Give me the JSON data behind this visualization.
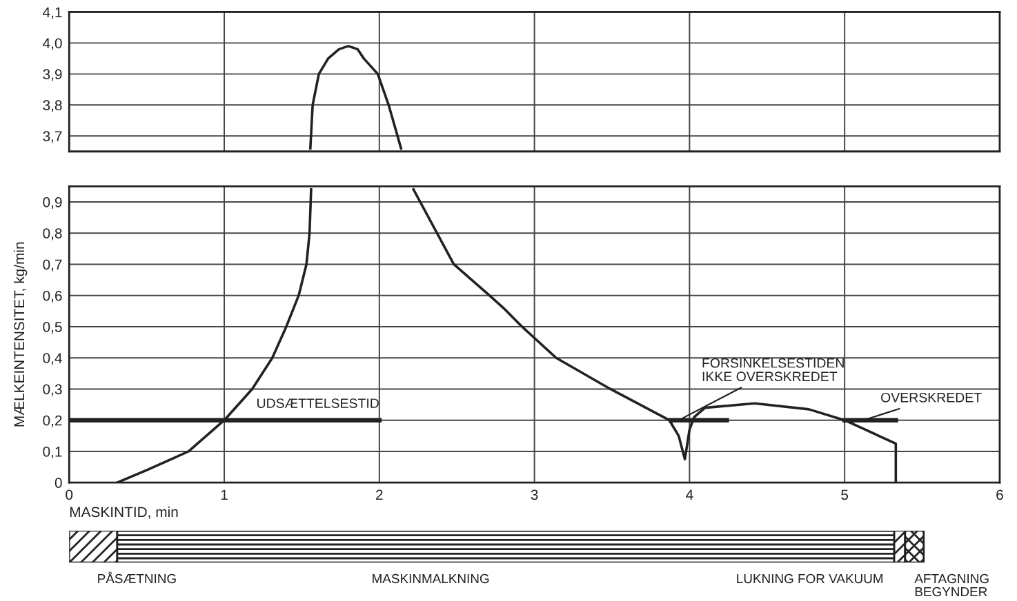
{
  "chart_data": [
    {
      "type": "line",
      "xlim": [
        0,
        6
      ],
      "xticks": [
        0,
        1,
        2,
        3,
        4,
        5,
        6
      ],
      "ylim": [
        3.65,
        4.1
      ],
      "yticks": [
        {
          "value": 3.7,
          "label": "3,7"
        },
        {
          "value": 3.8,
          "label": "3,8"
        },
        {
          "value": 3.9,
          "label": "3,9"
        },
        {
          "value": 4.0,
          "label": "4,0"
        },
        {
          "value": 4.1,
          "label": "4,1"
        }
      ],
      "grid": true,
      "tick_labels": "y",
      "line_style": "solid",
      "series": [
        {
          "color": "#222222",
          "x": [
            1.555,
            1.57,
            1.61,
            1.67,
            1.74,
            1.8,
            1.86,
            1.9,
            1.99,
            2.06,
            2.14
          ],
          "values": [
            3.66,
            3.8,
            3.9,
            3.95,
            3.98,
            3.99,
            3.98,
            3.95,
            3.9,
            3.8,
            3.66
          ]
        }
      ]
    },
    {
      "type": "line",
      "xlim": [
        0,
        6
      ],
      "xticks": [
        0,
        1,
        2,
        3,
        4,
        5,
        6
      ],
      "ylim": [
        0,
        0.95
      ],
      "yticks": [
        0,
        {
          "value": 0.1,
          "label": "0,1"
        },
        {
          "value": 0.2,
          "label": "0,2"
        },
        {
          "value": 0.3,
          "label": "0,3"
        },
        {
          "value": 0.4,
          "label": "0,4"
        },
        {
          "value": 0.5,
          "label": "0,5"
        },
        {
          "value": 0.6,
          "label": "0,6"
        },
        {
          "value": 0.7,
          "label": "0,7"
        },
        {
          "value": 0.8,
          "label": "0,8"
        },
        {
          "value": 0.9,
          "label": "0,9"
        }
      ],
      "xlabel": "MASKINTID, min",
      "ylabel": "MÆLKEINTENSITET, kg/min",
      "grid": true,
      "line_style": "solid",
      "series": [
        {
          "color": "#222222",
          "x": [
            0.31,
            0.5,
            0.77,
            1.0,
            1.18,
            1.31,
            1.4,
            1.48,
            1.53,
            1.55,
            1.56,
            1.9,
            2.22,
            2.48,
            2.71,
            2.8,
            2.92,
            3.14,
            3.49,
            3.87,
            3.93,
            3.97,
            4.0,
            4.03,
            4.1,
            4.42,
            4.77,
            5.0,
            5.33,
            5.33
          ],
          "values": [
            0,
            0.04,
            0.1,
            0.2,
            0.3,
            0.4,
            0.5,
            0.6,
            0.7,
            0.8,
            0.94,
            null,
            0.94,
            0.7,
            0.6,
            0.56,
            0.5,
            0.4,
            0.3,
            0.2,
            0.15,
            0.075,
            0.17,
            0.21,
            0.24,
            0.254,
            0.235,
            0.2,
            0.125,
            0
          ]
        },
        {
          "color": "#222222",
          "x": [
            0,
            2
          ],
          "values": [
            0.2,
            0.2
          ]
        },
        {
          "color": "#222222",
          "x": [
            3.88,
            4.24
          ],
          "values": [
            0.2,
            0.2
          ]
        },
        {
          "color": "#222222",
          "x": [
            5.0,
            5.33
          ],
          "values": [
            0.2,
            0.2
          ]
        }
      ],
      "annotations": [
        {
          "text": "UDSÆTTELSESTID",
          "x": 1.48,
          "y": 0.2
        },
        {
          "text": "FORSINKELSESTIDEN\nIKKE OVERSKREDET",
          "x": 3.93,
          "y": 0.2
        },
        {
          "text": "OVERSKREDET",
          "x": 5.12,
          "y": 0.2
        },
        "PÅSÆTNING",
        "MASKINMALKNING",
        "LUKNING FOR VAKUUM",
        "AFTAGNING\nBEGYNDER"
      ]
    }
  ]
}
